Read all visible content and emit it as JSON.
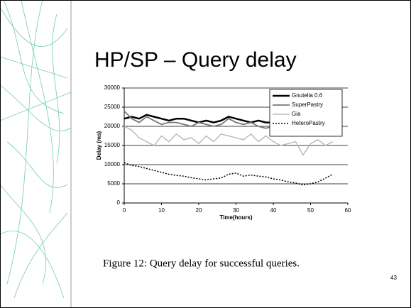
{
  "slide_title": "HP/SP – Query delay",
  "caption": "Figure 12: Query delay for successful queries.",
  "page_number": "43",
  "chart_data": {
    "type": "line",
    "xlabel": "Time(hours)",
    "ylabel": "Delay (ms)",
    "x": [
      0,
      2,
      4,
      6,
      8,
      10,
      12,
      14,
      16,
      18,
      20,
      22,
      24,
      26,
      28,
      30,
      32,
      34,
      36,
      38,
      40,
      42,
      44,
      46,
      48,
      50,
      52,
      54,
      56
    ],
    "series": [
      {
        "name": "Gnutella 0.6",
        "color": "#000000",
        "width": 2.5,
        "dashed": false,
        "values": [
          22000,
          22500,
          22000,
          23000,
          22500,
          22000,
          21500,
          22000,
          22000,
          21500,
          21000,
          21500,
          21000,
          21500,
          22500,
          22000,
          21500,
          21000,
          21500,
          21000,
          21000,
          20500,
          20500,
          20000,
          21000,
          20500,
          21000,
          20000,
          19500
        ]
      },
      {
        "name": "SuperPastry",
        "color": "#777777",
        "width": 1.8,
        "dashed": false,
        "values": [
          24000,
          22000,
          21000,
          22500,
          21500,
          20500,
          21000,
          21000,
          20500,
          20000,
          21000,
          20500,
          20000,
          20500,
          22000,
          21000,
          20500,
          21000,
          20000,
          19500,
          20000,
          19000,
          18500,
          19000,
          18500,
          19000,
          20000,
          19000,
          18000
        ]
      },
      {
        "name": "Gia",
        "color": "#bbbbbb",
        "width": 1.5,
        "dashed": false,
        "values": [
          20000,
          19000,
          17000,
          16000,
          15000,
          17500,
          16000,
          18000,
          16500,
          17000,
          15500,
          17500,
          16000,
          18000,
          17500,
          17000,
          16500,
          18000,
          16000,
          17500,
          16000,
          15000,
          15500,
          16000,
          12500,
          15500,
          16500,
          15000,
          16000
        ]
      },
      {
        "name": "HeteroPastry",
        "color": "#000000",
        "width": 1.5,
        "dashed": true,
        "values": [
          10500,
          9800,
          9500,
          9000,
          8500,
          8000,
          7500,
          7200,
          7000,
          6600,
          6300,
          6000,
          6300,
          6500,
          7500,
          7800,
          7000,
          7300,
          7000,
          6800,
          6300,
          6000,
          5500,
          5200,
          4700,
          5000,
          5500,
          6500,
          7500
        ]
      }
    ],
    "xlim": [
      0,
      60
    ],
    "xticks": [
      0,
      10,
      20,
      30,
      40,
      50,
      60
    ],
    "ylim": [
      0,
      30000
    ],
    "yticks": [
      0,
      5000,
      10000,
      15000,
      20000,
      25000,
      30000
    ],
    "grid": true,
    "legend": "upper right"
  }
}
